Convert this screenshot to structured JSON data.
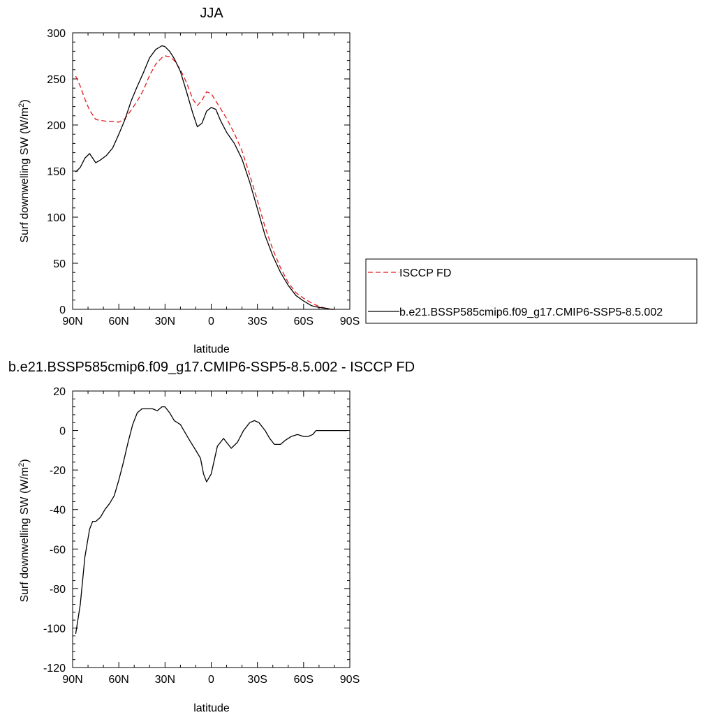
{
  "chart_data": [
    {
      "type": "line",
      "title": "JJA",
      "xlabel": "latitude",
      "ylabel": "Surf downwelling SW (W/m",
      "ylabel_superscript": "2",
      "ylabel_close": ")",
      "x_tick_labels": [
        "90N",
        "60N",
        "30N",
        "0",
        "30S",
        "60S",
        "90S"
      ],
      "y_tick_labels": [
        "0",
        "50",
        "100",
        "150",
        "200",
        "250",
        "300"
      ],
      "xlim": [
        90,
        -90
      ],
      "ylim": [
        0,
        300
      ],
      "legend": {
        "placement": "right",
        "entries": [
          "ISCCP FD",
          "b.e21.BSSP585cmip6.f09_g17.CMIP6-SSP5-8.5.002"
        ]
      },
      "x": [
        88,
        85,
        82,
        79,
        75,
        72,
        68,
        64,
        60,
        56,
        52,
        48,
        44,
        40,
        36,
        32,
        30,
        27,
        24,
        20,
        16,
        12,
        9,
        6,
        3,
        0,
        -3,
        -6,
        -10,
        -15,
        -20,
        -25,
        -30,
        -35,
        -40,
        -45,
        -50,
        -55,
        -60,
        -65,
        -70,
        -75,
        -78,
        -80
      ],
      "series": [
        {
          "name": "ISCCP FD",
          "color": "#e41a1c",
          "style": "dashed",
          "values": [
            253,
            242,
            228,
            216,
            206,
            205,
            204,
            204,
            203,
            207,
            216,
            226,
            238,
            254,
            266,
            273,
            275,
            274,
            270,
            260,
            246,
            228,
            221,
            227,
            236,
            234,
            226,
            218,
            207,
            191,
            172,
            146,
            118,
            89,
            65,
            45,
            29,
            18,
            12,
            7,
            3,
            1,
            0,
            0
          ]
        },
        {
          "name": "b.e21.BSSP585cmip6.f09_g17.CMIP6-SSP5-8.5.002",
          "color": "#000000",
          "style": "solid",
          "values": [
            149,
            154,
            164,
            169,
            159,
            162,
            167,
            175,
            190,
            206,
            226,
            242,
            257,
            273,
            282,
            286,
            285,
            280,
            272,
            258,
            236,
            213,
            198,
            202,
            215,
            219,
            217,
            205,
            192,
            180,
            163,
            138,
            109,
            80,
            58,
            40,
            26,
            15,
            9,
            4,
            2,
            1,
            0,
            0
          ]
        }
      ]
    },
    {
      "type": "line",
      "title": "b.e21.BSSP585cmip6.f09_g17.CMIP6-SSP5-8.5.002 - ISCCP FD",
      "xlabel": "latitude",
      "ylabel": "Surf downwelling SW (W/m",
      "ylabel_superscript": "2",
      "ylabel_close": ")",
      "x_tick_labels": [
        "90N",
        "60N",
        "30N",
        "0",
        "30S",
        "60S",
        "90S"
      ],
      "y_tick_labels": [
        "-120",
        "-100",
        "-80",
        "-60",
        "-40",
        "-20",
        "0",
        "20"
      ],
      "xlim": [
        90,
        -90
      ],
      "ylim": [
        -120,
        20
      ],
      "x": [
        88,
        85,
        82,
        79,
        77,
        75,
        72,
        69,
        66,
        63,
        60,
        57,
        54,
        51,
        48,
        45,
        42,
        38,
        35,
        32,
        30,
        27,
        24,
        20,
        17,
        14,
        10,
        7,
        5,
        3,
        0,
        -4,
        -8,
        -13,
        -17,
        -21,
        -25,
        -28,
        -31,
        -35,
        -38,
        -41,
        -45,
        -48,
        -52,
        -56,
        -60,
        -63,
        -66,
        -68,
        -71,
        -75,
        -80,
        -88
      ],
      "series": [
        {
          "name": "b.e21.BSSP585cmip6.f09_g17.CMIP6-SSP5-8.5.002 - ISCCP FD",
          "color": "#000000",
          "style": "solid",
          "values": [
            -103,
            -88,
            -64,
            -50,
            -46,
            -46,
            -44,
            -40,
            -37,
            -33,
            -25,
            -16,
            -6,
            3,
            9,
            11,
            11,
            11,
            10,
            12,
            12,
            9,
            5,
            3,
            -1,
            -5,
            -10,
            -14,
            -22,
            -26,
            -22,
            -8,
            -4,
            -9,
            -6,
            0,
            4,
            5,
            4,
            0,
            -4,
            -7,
            -7,
            -5,
            -3,
            -2,
            -3,
            -3,
            -2,
            0,
            0,
            0,
            0,
            0
          ]
        }
      ]
    }
  ]
}
